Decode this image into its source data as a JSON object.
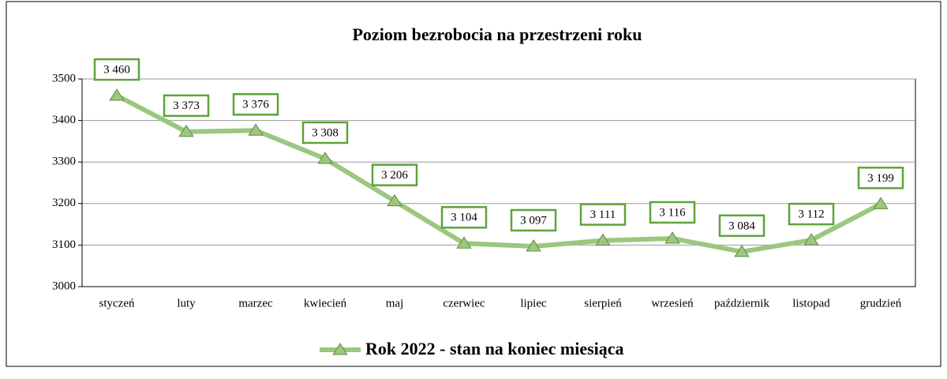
{
  "chart_data": {
    "type": "line",
    "title": "Poziom bezrobocia na przestrzeni roku",
    "categories": [
      "styczeń",
      "luty",
      "marzec",
      "kwiecień",
      "maj",
      "czerwiec",
      "lipiec",
      "sierpień",
      "wrzesień",
      "październik",
      "listopad",
      "grudzień"
    ],
    "series": [
      {
        "name": "Rok 2022 - stan na koniec miesiąca",
        "color": "#9bc77e",
        "values": [
          3460,
          3373,
          3376,
          3308,
          3206,
          3104,
          3097,
          3111,
          3116,
          3084,
          3112,
          3199
        ],
        "value_labels": [
          "3 460",
          "3 373",
          "3 376",
          "3 308",
          "3 206",
          "3 104",
          "3 097",
          "3 111",
          "3 116",
          "3 084",
          "3 112",
          "3 199"
        ]
      }
    ],
    "ylim": [
      3000,
      3500
    ],
    "yticks": [
      3000,
      3100,
      3200,
      3300,
      3400,
      3500
    ],
    "grid": true,
    "legend": "bottom"
  }
}
